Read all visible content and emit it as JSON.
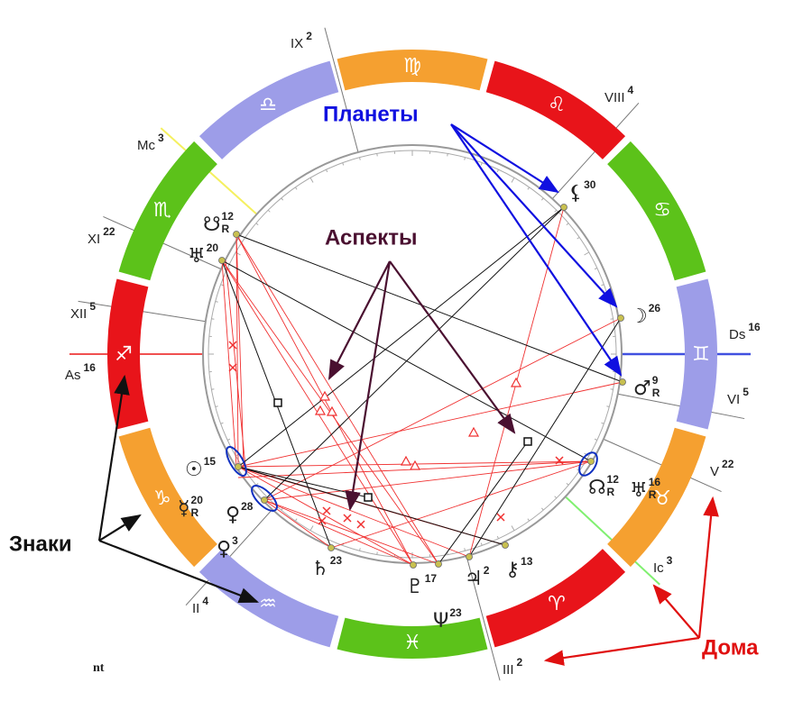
{
  "signs": [
    "♐",
    "♑",
    "♒",
    "♓",
    "♈",
    "♉",
    "♊",
    "♋",
    "♌",
    "♍",
    "♎",
    "♏"
  ],
  "houses": [
    {
      "name": "As",
      "degree": 16
    },
    {
      "name": "XII",
      "degree": 5
    },
    {
      "name": "XI",
      "degree": 22
    },
    {
      "name": "Mc",
      "degree": 3
    },
    {
      "name": "IX",
      "degree": 2
    },
    {
      "name": "VIII",
      "degree": 4
    },
    {
      "name": "Ds",
      "degree": 16
    },
    {
      "name": "VI",
      "degree": 5
    },
    {
      "name": "V",
      "degree": 22
    },
    {
      "name": "Ic",
      "degree": 3
    },
    {
      "name": "III",
      "degree": 2
    },
    {
      "name": "II",
      "degree": 4
    }
  ],
  "planets": [
    {
      "glyph": "⚸",
      "degree": 30
    },
    {
      "glyph": "☽",
      "degree": 26
    },
    {
      "glyph": "♂",
      "degree": 9,
      "retro": "R"
    },
    {
      "glyph": "☊",
      "degree": 12,
      "retro": "R"
    },
    {
      "glyph": "♅",
      "degree": 16,
      "retro": "R"
    },
    {
      "glyph": "⚷",
      "degree": 13
    },
    {
      "glyph": "♃",
      "degree": 2
    },
    {
      "glyph": "♇",
      "degree": 17
    },
    {
      "glyph": "Ψ",
      "degree": 23
    },
    {
      "glyph": "♄",
      "degree": 23
    },
    {
      "glyph": "♀",
      "degree": 28
    },
    {
      "glyph": "♀",
      "degree": 3
    },
    {
      "glyph": "☿",
      "degree": 20,
      "retro": "R"
    },
    {
      "glyph": "☉",
      "degree": 15
    },
    {
      "glyph": "☋",
      "degree": 12,
      "retro": "R"
    },
    {
      "glyph": "♅",
      "degree": 20
    }
  ],
  "annotations": {
    "planets": "Планеты",
    "aspects": "Аспекты",
    "signs": "Знаки",
    "houses": "Дома"
  },
  "footer": "nt"
}
